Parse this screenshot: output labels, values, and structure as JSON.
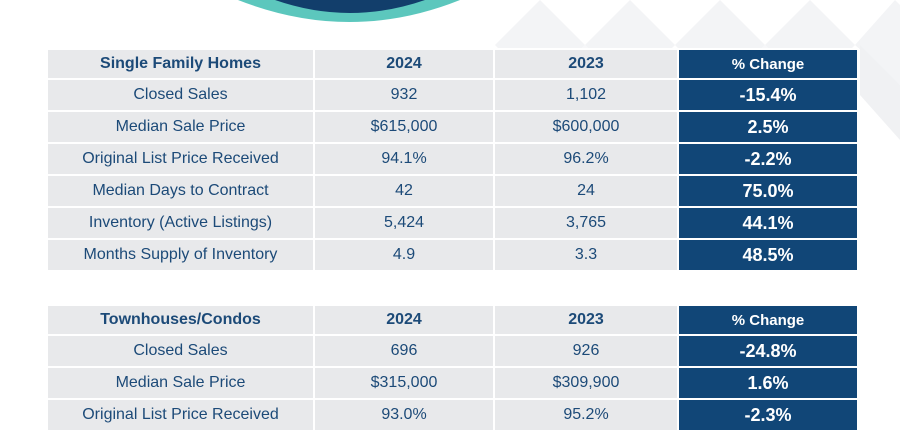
{
  "colors": {
    "header_accent": "#114677",
    "cell_bg": "#e8e9eb",
    "text": "#1c4a78",
    "arc_teal": "#5cc7bd",
    "arc_navy": "#123e6b"
  },
  "single_family": {
    "headers": [
      "Single Family Homes",
      "2024",
      "2023",
      "% Change"
    ],
    "rows": [
      [
        "Closed Sales",
        "932",
        "1,102",
        "-15.4%"
      ],
      [
        "Median Sale Price",
        "$615,000",
        "$600,000",
        "2.5%"
      ],
      [
        "Original List Price Received",
        "94.1%",
        "96.2%",
        "-2.2%"
      ],
      [
        "Median Days to Contract",
        "42",
        "24",
        "75.0%"
      ],
      [
        "Inventory (Active Listings)",
        "5,424",
        "3,765",
        "44.1%"
      ],
      [
        "Months Supply of Inventory",
        "4.9",
        "3.3",
        "48.5%"
      ]
    ]
  },
  "townhouses": {
    "headers": [
      "Townhouses/Condos",
      "2024",
      "2023",
      "% Change"
    ],
    "rows": [
      [
        "Closed Sales",
        "696",
        "926",
        "-24.8%"
      ],
      [
        "Median Sale Price",
        "$315,000",
        "$309,900",
        "1.6%"
      ],
      [
        "Original List Price Received",
        "93.0%",
        "95.2%",
        "-2.3%"
      ]
    ]
  }
}
